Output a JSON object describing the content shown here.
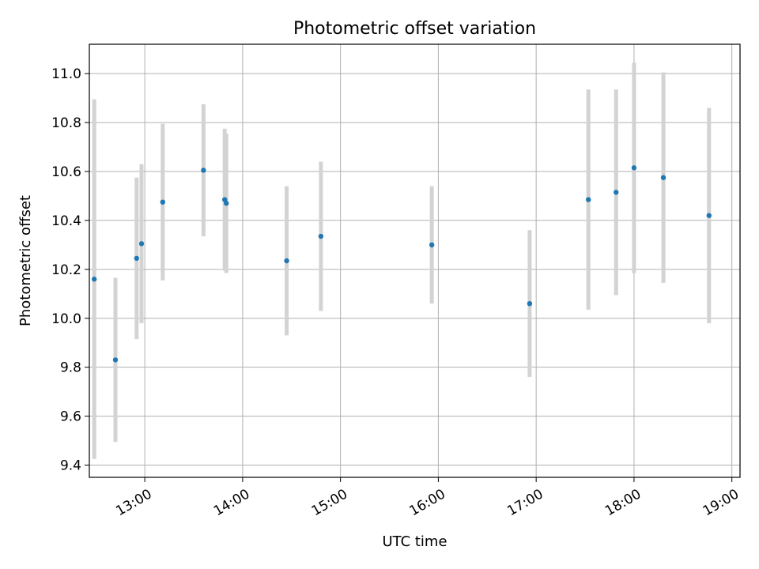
{
  "chart_data": {
    "type": "scatter",
    "title": "Photometric offset variation",
    "xlabel": "UTC time",
    "ylabel": "Photometric offset",
    "x_tick_labels": [
      "13:00",
      "14:00",
      "15:00",
      "16:00",
      "17:00",
      "18:00",
      "19:00"
    ],
    "y_tick_labels": [
      "9.4",
      "9.6",
      "9.8",
      "10.0",
      "10.2",
      "10.4",
      "10.6",
      "10.8",
      "11.0"
    ],
    "xlim": [
      "12:26",
      "19:05"
    ],
    "ylim": [
      9.35,
      11.12
    ],
    "grid": true,
    "point_color": "#1f77b4",
    "errorbar_color": "#d3d3d3",
    "points": [
      {
        "time": "12:29",
        "y": 10.16,
        "err": 0.735
      },
      {
        "time": "12:42",
        "y": 9.83,
        "err": 0.335
      },
      {
        "time": "12:55",
        "y": 10.245,
        "err": 0.33
      },
      {
        "time": "12:58",
        "y": 10.305,
        "err": 0.325
      },
      {
        "time": "13:11",
        "y": 10.475,
        "err": 0.32
      },
      {
        "time": "13:36",
        "y": 10.605,
        "err": 0.27
      },
      {
        "time": "13:49",
        "y": 10.485,
        "err": 0.29
      },
      {
        "time": "13:50",
        "y": 10.47,
        "err": 0.285
      },
      {
        "time": "14:27",
        "y": 10.235,
        "err": 0.305
      },
      {
        "time": "14:48",
        "y": 10.335,
        "err": 0.305
      },
      {
        "time": "15:56",
        "y": 10.3,
        "err": 0.24
      },
      {
        "time": "16:56",
        "y": 10.06,
        "err": 0.3
      },
      {
        "time": "17:32",
        "y": 10.485,
        "err": 0.45
      },
      {
        "time": "17:49",
        "y": 10.515,
        "err": 0.42
      },
      {
        "time": "18:00",
        "y": 10.615,
        "err": 0.43
      },
      {
        "time": "18:18",
        "y": 10.575,
        "err": 0.43
      },
      {
        "time": "18:46",
        "y": 10.42,
        "err": 0.44
      }
    ]
  }
}
